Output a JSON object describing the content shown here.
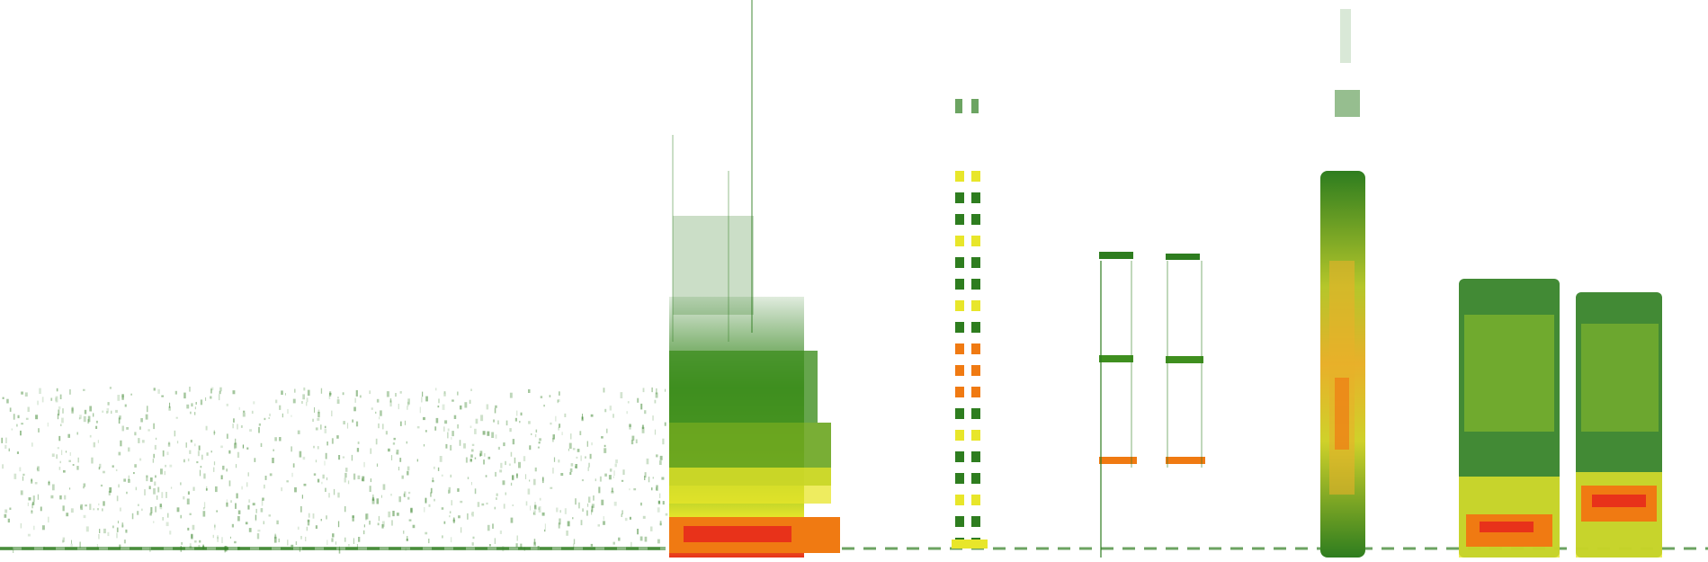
{
  "image": {
    "kind": "spectrogram",
    "background": "#ffffff",
    "palette": {
      "low": "#2e7d1f",
      "mid": "#8fbf2a",
      "high": "#e8e62a",
      "peak": "#f07a12",
      "hot": "#e8321a"
    }
  }
}
